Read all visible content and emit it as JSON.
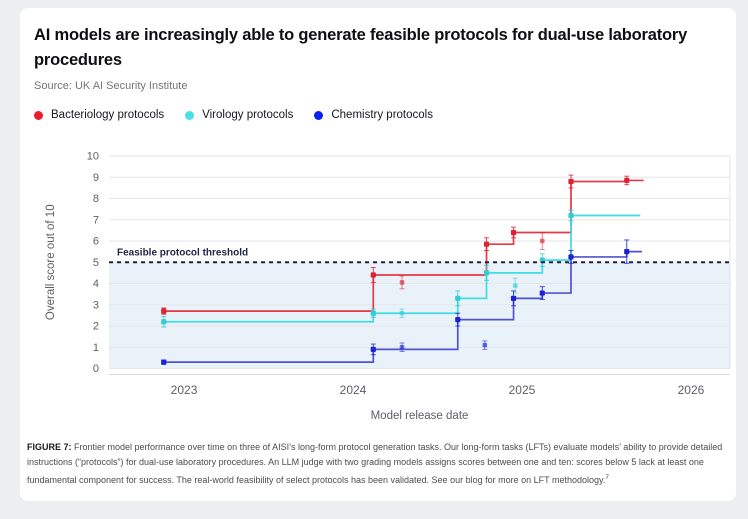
{
  "header": {
    "title": "AI models are increasingly able to generate feasible protocols for dual-use laboratory procedures",
    "source": "Source: UK AI Security Institute"
  },
  "legend": {
    "items": [
      {
        "label": "Bacteriology protocols",
        "color": "#e91e30"
      },
      {
        "label": "Virology protocols",
        "color": "#49dfe6"
      },
      {
        "label": "Chemistry protocols",
        "color": "#0c20ee"
      }
    ]
  },
  "footnote": {
    "label": "FIGURE 7:",
    "text": " Frontier model performance over time on three of AISI’s long-form protocol generation tasks. Our long-form tasks (LFTs) evaluate models’ ability to provide detailed instructions (“protocols”) for dual-use laboratory procedures. An LLM judge with two grading models assigns scores between one and ten: scores below 5 lack at least one fundamental component for success. The real-world feasibility of select protocols has been validated.  See our blog for more on LFT methodology.",
    "superscript": "7"
  },
  "chart_data": {
    "type": "line",
    "subtype": "step-running-max with error bars",
    "title": "AI models are increasingly able to generate feasible protocols for dual-use laboratory procedures",
    "xlabel": "Model release date",
    "ylabel": "Overall score out of 10",
    "xlim": [
      2022.556,
      2026.231
    ],
    "ylim": [
      0,
      10
    ],
    "xticks": [
      2023,
      2024,
      2025,
      2026
    ],
    "yticks": [
      0,
      1,
      2,
      3,
      4,
      5,
      6,
      7,
      8,
      9,
      10
    ],
    "grid": "horizontal",
    "grid_color": "#e5e6ea",
    "axis_line_color": "#d9dade",
    "tick_text_color": "#5d5e66",
    "threshold": {
      "value": 5,
      "label": "Feasible protocol threshold",
      "line_color": "#1e2446",
      "fill_below": "#e9f2f9"
    },
    "series": [
      {
        "name": "Bacteriology protocols",
        "line_color": "#e53945",
        "marker_color": "#dc2233",
        "steps": [
          [
            2022.88,
            2.7,
            0.15
          ],
          [
            2024.12,
            4.4,
            0.35
          ],
          [
            2024.79,
            5.85,
            0.3
          ],
          [
            2024.95,
            6.4,
            0.25
          ],
          [
            2025.29,
            8.8,
            0.3
          ],
          [
            2025.62,
            8.85,
            0.2
          ]
        ],
        "line_end": 2025.72,
        "scatter_points": [
          [
            2024.29,
            4.05,
            0.3
          ],
          [
            2025.12,
            6.0,
            0.4
          ]
        ]
      },
      {
        "name": "Virology protocols",
        "line_color": "#3edde2",
        "marker_color": "#35ccd6",
        "steps": [
          [
            2022.88,
            2.2,
            0.25
          ],
          [
            2024.12,
            2.6,
            0.2
          ],
          [
            2024.62,
            3.3,
            0.35
          ],
          [
            2024.79,
            4.5,
            0.35
          ],
          [
            2025.12,
            5.1,
            0.3
          ],
          [
            2025.29,
            7.2,
            0.25
          ]
        ],
        "line_end": 2025.7,
        "scatter_points": [
          [
            2024.29,
            2.6,
            0.2
          ],
          [
            2024.96,
            3.9,
            0.35
          ]
        ]
      },
      {
        "name": "Chemistry protocols",
        "line_color": "#5054cc",
        "marker_color": "#1b24d4",
        "steps": [
          [
            2022.88,
            0.3,
            0.1
          ],
          [
            2024.12,
            0.9,
            0.25
          ],
          [
            2024.62,
            2.3,
            0.3
          ],
          [
            2024.95,
            3.3,
            0.35
          ],
          [
            2025.12,
            3.55,
            0.3
          ],
          [
            2025.29,
            5.25,
            0.3
          ],
          [
            2025.62,
            5.5,
            0.55
          ]
        ],
        "line_end": 2025.71,
        "scatter_points": [
          [
            2024.29,
            1.0,
            0.2
          ],
          [
            2024.78,
            1.1,
            0.2
          ]
        ]
      }
    ]
  }
}
